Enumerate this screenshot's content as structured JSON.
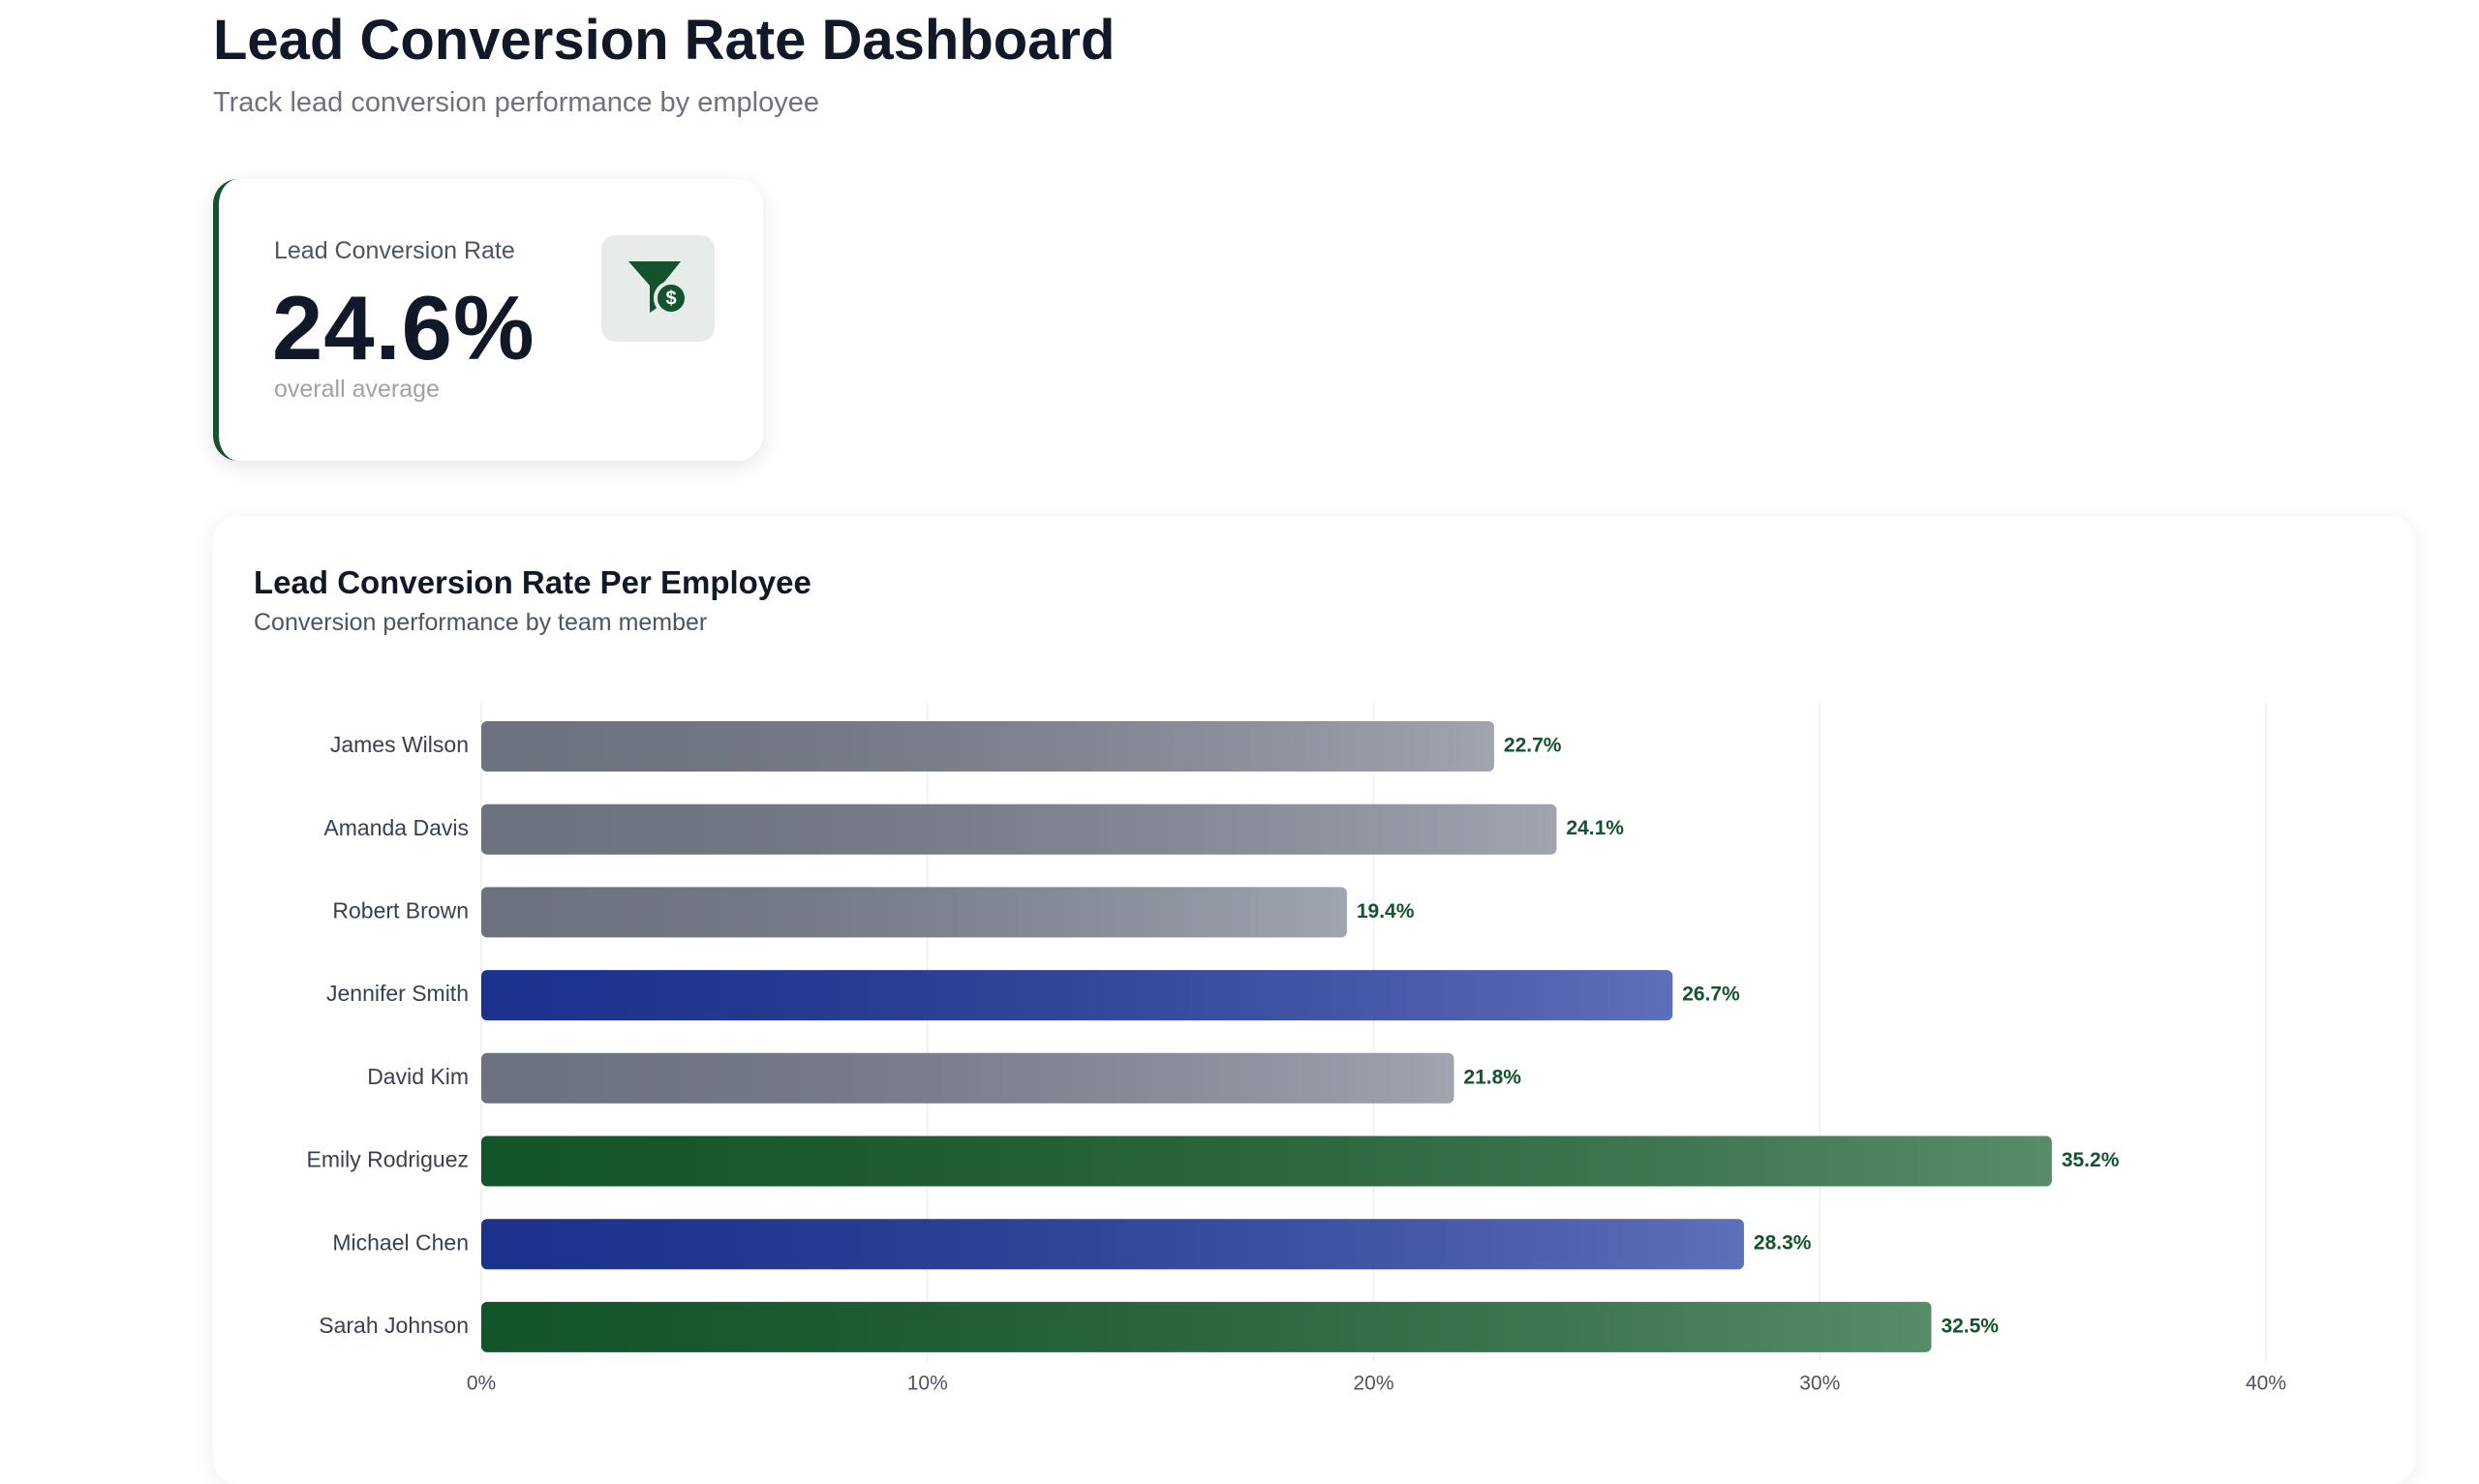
{
  "header": {
    "title": "Lead Conversion Rate Dashboard",
    "subtitle": "Track lead conversion performance by employee"
  },
  "kpi": {
    "label": "Lead Conversion Rate",
    "value": "24.6%",
    "note": "overall average"
  },
  "chart_data": {
    "type": "hbar",
    "title": "Lead Conversion Rate Per Employee",
    "subtitle": "Conversion performance by team member",
    "categories": [
      "James Wilson",
      "Amanda Davis",
      "Robert Brown",
      "Jennifer Smith",
      "David Kim",
      "Emily Rodriguez",
      "Michael Chen",
      "Sarah Johnson"
    ],
    "values": [
      22.7,
      24.1,
      19.4,
      26.7,
      21.8,
      35.2,
      28.3,
      32.5
    ],
    "value_labels": [
      "22.7%",
      "24.1%",
      "19.4%",
      "26.7%",
      "21.8%",
      "35.2%",
      "28.3%",
      "32.5%"
    ],
    "colors": [
      "#7b8190",
      "#7b8190",
      "#7b8190",
      "#2038a0",
      "#7b8190",
      "#17602f",
      "#2038a0",
      "#17602f"
    ],
    "xlim": [
      0,
      40
    ],
    "xticks": [
      {
        "value": 0,
        "label": "0%"
      },
      {
        "value": 10,
        "label": "10%"
      },
      {
        "value": 20,
        "label": "20%"
      },
      {
        "value": 30,
        "label": "30%"
      },
      {
        "value": 40,
        "label": "40%"
      }
    ],
    "grid": true
  }
}
